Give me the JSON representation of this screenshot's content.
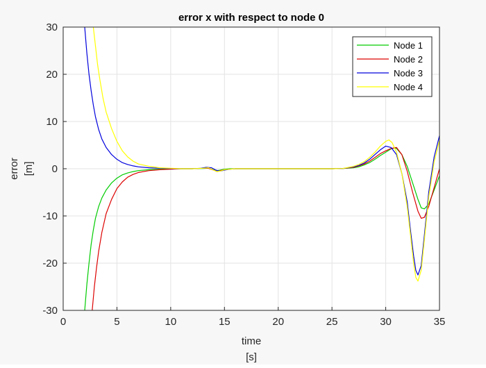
{
  "chart_data": {
    "type": "line",
    "title": "error x with respect to node 0",
    "xlabel_line1": "time",
    "xlabel_line2": "[s]",
    "ylabel_line1": "error",
    "ylabel_line2": "[m]",
    "xlim": [
      0,
      35
    ],
    "ylim": [
      -30,
      30
    ],
    "xticks": [
      0,
      5,
      10,
      15,
      20,
      25,
      30,
      35
    ],
    "yticks": [
      -30,
      -20,
      -10,
      0,
      10,
      20,
      30
    ],
    "xtick_labels": [
      "0",
      "5",
      "10",
      "15",
      "20",
      "25",
      "30",
      "35"
    ],
    "ytick_labels": [
      "-30",
      "-20",
      "-10",
      "0",
      "10",
      "20",
      "30"
    ],
    "grid": true,
    "legend_position": "top-right",
    "series": [
      {
        "name": "Node 1",
        "color": "#00cc00",
        "x": [
          2.0,
          2.2,
          2.4,
          2.6,
          2.8,
          3.0,
          3.3,
          3.6,
          4.0,
          4.5,
          5.0,
          5.5,
          6.0,
          6.5,
          7.0,
          8.0,
          9.0,
          10.0,
          11.0,
          12.0,
          13.0,
          13.5,
          14.0,
          14.3,
          14.6,
          15.0,
          15.5,
          16.0,
          17.0,
          18.0,
          20.0,
          22.0,
          24.0,
          25.0,
          26.0,
          27.0,
          27.5,
          28.0,
          28.5,
          29.0,
          29.5,
          30.0,
          30.5,
          30.8,
          31.0,
          31.5,
          32.0,
          32.5,
          33.0,
          33.3,
          33.6,
          34.0,
          34.5,
          35.0
        ],
        "y": [
          -30,
          -24.5,
          -20,
          -16,
          -13,
          -10.5,
          -8,
          -6.2,
          -4.5,
          -3.0,
          -2.0,
          -1.3,
          -0.9,
          -0.6,
          -0.4,
          -0.2,
          -0.1,
          -0.05,
          0,
          0,
          0.05,
          0.1,
          -0.2,
          -0.4,
          -0.3,
          -0.1,
          0,
          0,
          0,
          0,
          0,
          0,
          0,
          0,
          0.05,
          0.2,
          0.4,
          0.8,
          1.3,
          2.0,
          2.8,
          3.5,
          4.2,
          4.4,
          4.3,
          3.0,
          0.5,
          -3.0,
          -6.5,
          -8.3,
          -8.5,
          -7.5,
          -4.5,
          -1.5
        ]
      },
      {
        "name": "Node 2",
        "color": "#dd0000",
        "x": [
          2.7,
          2.9,
          3.1,
          3.3,
          3.6,
          4.0,
          4.5,
          5.0,
          5.5,
          6.0,
          6.5,
          7.0,
          8.0,
          9.0,
          10.0,
          11.0,
          12.0,
          13.0,
          13.5,
          14.0,
          14.3,
          14.6,
          15.0,
          15.5,
          16.0,
          17.0,
          18.0,
          20.0,
          22.0,
          24.0,
          25.0,
          26.0,
          27.0,
          27.5,
          28.0,
          28.5,
          29.0,
          29.5,
          30.0,
          30.5,
          31.0,
          31.5,
          32.0,
          32.5,
          33.0,
          33.3,
          33.6,
          34.0,
          34.5,
          35.0
        ],
        "y": [
          -30,
          -25,
          -21,
          -17.5,
          -13.5,
          -9.5,
          -6.5,
          -4.2,
          -2.8,
          -1.8,
          -1.2,
          -0.8,
          -0.4,
          -0.2,
          -0.1,
          0,
          0,
          0.1,
          0.1,
          -0.3,
          -0.6,
          -0.4,
          -0.2,
          -0.1,
          0,
          0,
          0,
          0,
          0,
          0,
          0,
          0.05,
          0.3,
          0.6,
          1.0,
          1.6,
          2.4,
          3.2,
          3.8,
          4.3,
          4.5,
          3.0,
          -0.5,
          -5.0,
          -9.0,
          -10.5,
          -10.3,
          -8.0,
          -4.0,
          0.0
        ]
      },
      {
        "name": "Node 3",
        "color": "#0000dd",
        "x": [
          2.0,
          2.2,
          2.4,
          2.6,
          2.8,
          3.0,
          3.3,
          3.6,
          4.0,
          4.5,
          5.0,
          5.5,
          6.0,
          6.5,
          7.0,
          8.0,
          9.0,
          10.0,
          11.0,
          12.0,
          12.8,
          13.3,
          13.8,
          14.2,
          14.6,
          15.0,
          15.5,
          16.0,
          17.0,
          18.0,
          20.0,
          22.0,
          24.0,
          25.0,
          26.0,
          27.0,
          27.5,
          28.0,
          28.5,
          29.0,
          29.5,
          30.0,
          30.5,
          31.0,
          31.5,
          32.0,
          32.3,
          32.6,
          32.8,
          33.0,
          33.3,
          33.6,
          34.0,
          34.5,
          35.0
        ],
        "y": [
          30,
          24.5,
          20,
          16.5,
          13.5,
          11,
          8.3,
          6.3,
          4.5,
          3.0,
          2.0,
          1.3,
          0.9,
          0.6,
          0.4,
          0.2,
          0.1,
          0.05,
          0,
          0,
          0.1,
          0.3,
          0.2,
          -0.3,
          -0.5,
          -0.3,
          -0.1,
          0,
          0,
          0,
          0,
          0,
          0,
          0,
          0.05,
          0.4,
          0.7,
          1.2,
          2.0,
          3.0,
          4.0,
          4.8,
          4.5,
          3.0,
          -1.0,
          -7.0,
          -13.0,
          -18.5,
          -21.5,
          -22.5,
          -20.5,
          -14.0,
          -5.0,
          2.5,
          7.0
        ]
      },
      {
        "name": "Node 4",
        "color": "#ffff00",
        "x": [
          2.8,
          3.0,
          3.2,
          3.4,
          3.7,
          4.0,
          4.5,
          5.0,
          5.5,
          6.0,
          6.5,
          7.0,
          8.0,
          9.0,
          10.0,
          11.0,
          12.0,
          13.0,
          13.5,
          14.0,
          14.3,
          14.6,
          15.0,
          15.5,
          16.0,
          17.0,
          18.0,
          20.0,
          22.0,
          24.0,
          25.0,
          26.0,
          27.0,
          27.5,
          28.0,
          28.5,
          29.0,
          29.5,
          30.0,
          30.3,
          30.6,
          31.0,
          31.5,
          32.0,
          32.3,
          32.6,
          32.8,
          33.0,
          33.3,
          33.6,
          34.0,
          34.5,
          35.0
        ],
        "y": [
          30,
          26,
          22,
          19,
          15,
          12,
          8.5,
          5.8,
          3.8,
          2.5,
          1.6,
          1.0,
          0.5,
          0.2,
          0.1,
          0,
          0,
          0.1,
          0.2,
          -0.3,
          -0.6,
          -0.5,
          -0.2,
          -0.1,
          0,
          0,
          0,
          0,
          0,
          0,
          0,
          0.05,
          0.5,
          0.9,
          1.5,
          2.4,
          3.5,
          4.8,
          5.8,
          6.1,
          5.5,
          3.5,
          -1.0,
          -8.0,
          -14.0,
          -20.0,
          -23.0,
          -23.8,
          -21.5,
          -15.0,
          -6.0,
          1.5,
          6.0
        ]
      }
    ]
  }
}
